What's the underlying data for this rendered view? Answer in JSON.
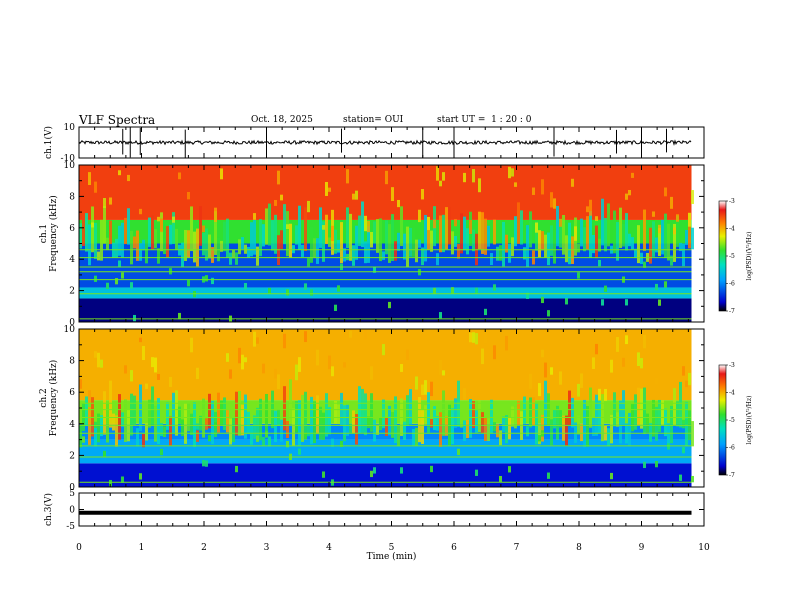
{
  "header": {
    "title": "VLF Spectra",
    "date": "Oct. 18, 2025",
    "station": "station= OUI",
    "start": "start UT =  1 : 20 : 0"
  },
  "chart_data": [
    {
      "type": "line",
      "panel": "ch1-waveform",
      "ylabel": "ch.1(V)",
      "ylim": [
        -10,
        10
      ],
      "ytick_labels": [
        "10",
        "-10"
      ],
      "baseline": 0,
      "spike_times_min": [
        0.7,
        0.82,
        0.98,
        1.7,
        3.0,
        4.2,
        5.5,
        6.0,
        7.6,
        8.6,
        9.0,
        9.4
      ]
    },
    {
      "type": "heatmap",
      "panel": "ch1-spectrogram",
      "ylabel_top": "ch.1",
      "ylabel": "Frequency (kHz)",
      "ylim": [
        0,
        10
      ],
      "ytick_labels": [
        "0",
        "2",
        "4",
        "6",
        "8",
        "10"
      ],
      "colorbar": {
        "label": "log(PSD)(V²/Hz)",
        "range": [
          -7,
          -3
        ],
        "tick_labels": [
          "-3",
          "-4",
          "-5",
          "-6",
          "-7"
        ]
      },
      "bands": [
        {
          "freq_khz": [
            0,
            1.5
          ],
          "log_psd": -6.8
        },
        {
          "freq_khz": [
            1.5,
            2.2
          ],
          "log_psd": -5.6
        },
        {
          "freq_khz": [
            2.2,
            5
          ],
          "log_psd": -6.3
        },
        {
          "freq_khz": [
            5,
            6.5
          ],
          "log_psd": -4.8
        },
        {
          "freq_khz": [
            6.5,
            10
          ],
          "log_psd": -3.5
        }
      ],
      "lines_khz": [
        0.2,
        1.8,
        2.7,
        3.2,
        3.5,
        4.1,
        4.6
      ]
    },
    {
      "type": "heatmap",
      "panel": "ch2-spectrogram",
      "ylabel_top": "ch.2",
      "ylabel": "Frequency (kHz)",
      "ylim": [
        0,
        10
      ],
      "ytick_labels": [
        "0",
        "2",
        "4",
        "6",
        "8",
        "10"
      ],
      "colorbar": {
        "label": "log(PSD)(V²/Hz)",
        "range": [
          -7,
          -3
        ],
        "tick_labels": [
          "-3",
          "-4",
          "-5",
          "-6",
          "-7"
        ]
      },
      "bands": [
        {
          "freq_khz": [
            0,
            1.5
          ],
          "log_psd": -6.6
        },
        {
          "freq_khz": [
            1.5,
            3
          ],
          "log_psd": -5.8
        },
        {
          "freq_khz": [
            3,
            4
          ],
          "log_psd": -6.0
        },
        {
          "freq_khz": [
            4,
            5.5
          ],
          "log_psd": -4.6
        },
        {
          "freq_khz": [
            5.5,
            10
          ],
          "log_psd": -4.0
        }
      ],
      "lines_khz": [
        0.3,
        1.9,
        2.6,
        3.4,
        3.9,
        4.4,
        4.9,
        5.3
      ]
    },
    {
      "type": "line",
      "panel": "ch3-waveform",
      "ylabel": "ch.3(V)",
      "ylim": [
        -5,
        5
      ],
      "ytick_labels": [
        "5",
        "0",
        "-5"
      ],
      "value": -1
    }
  ],
  "xaxis": {
    "label": "Time (min)",
    "range": [
      0,
      10
    ],
    "data_end": 9.8,
    "tick_labels": [
      "0",
      "1",
      "2",
      "3",
      "4",
      "5",
      "6",
      "7",
      "8",
      "9",
      "10"
    ]
  }
}
